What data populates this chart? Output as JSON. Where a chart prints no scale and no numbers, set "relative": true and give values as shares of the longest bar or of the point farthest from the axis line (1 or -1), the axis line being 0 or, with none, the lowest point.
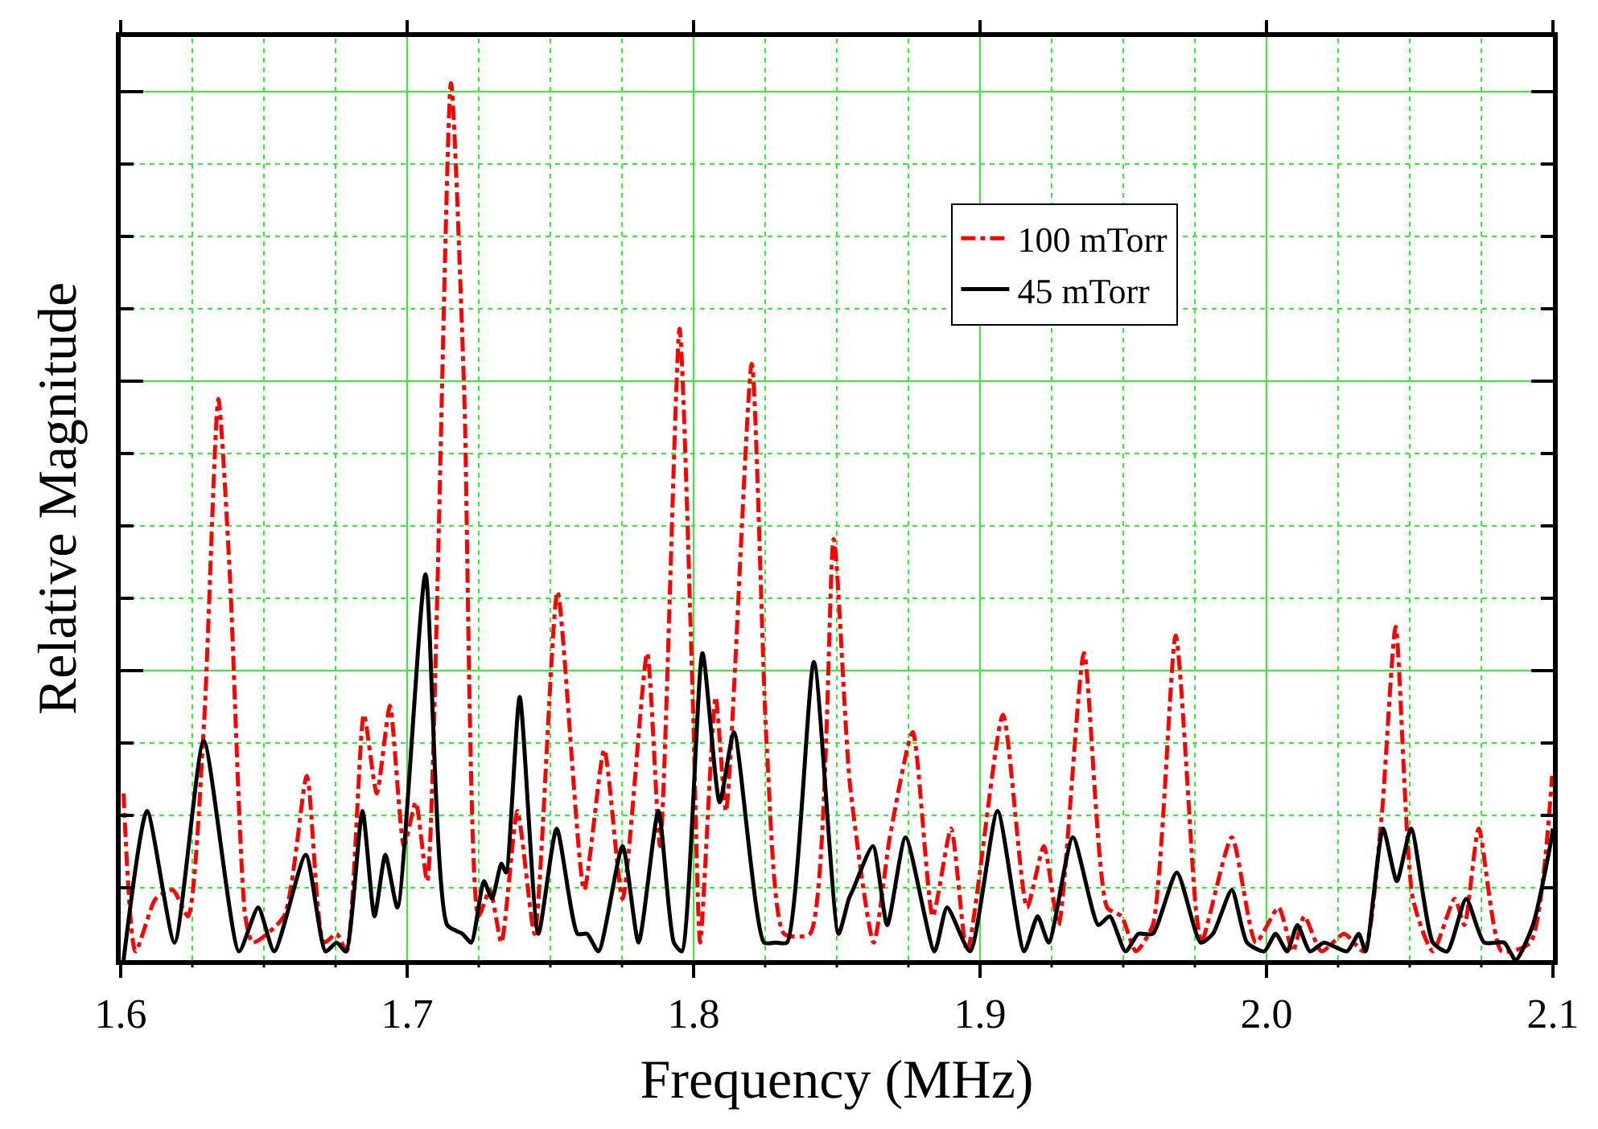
{
  "chart_data": {
    "type": "line",
    "xlabel": "Frequency (MHz)",
    "ylabel": "Relative Magnitude",
    "relative": true,
    "xlim": [
      1.6,
      2.1
    ],
    "xticks": [
      {
        "value": 1.6,
        "label": "1.6"
      },
      {
        "value": 1.625,
        "label": null
      },
      {
        "value": 1.65,
        "label": null
      },
      {
        "value": 1.675,
        "label": null
      },
      {
        "value": 1.7,
        "label": "1.7"
      },
      {
        "value": 1.725,
        "label": null
      },
      {
        "value": 1.75,
        "label": null
      },
      {
        "value": 1.775,
        "label": null
      },
      {
        "value": 1.8,
        "label": "1.8"
      },
      {
        "value": 1.825,
        "label": null
      },
      {
        "value": 1.85,
        "label": null
      },
      {
        "value": 1.875,
        "label": null
      },
      {
        "value": 1.9,
        "label": "1.9"
      },
      {
        "value": 1.925,
        "label": null
      },
      {
        "value": 1.95,
        "label": null
      },
      {
        "value": 1.975,
        "label": null
      },
      {
        "value": 2.0,
        "label": "2.0"
      },
      {
        "value": 2.025,
        "label": null
      },
      {
        "value": 2.05,
        "label": null
      },
      {
        "value": 2.075,
        "label": null
      },
      {
        "value": 2.1,
        "label": "2.1"
      }
    ],
    "grid": true,
    "legend": "top right",
    "marker": "none",
    "series": [
      {
        "name": "100 mTorr",
        "color": "#ff0000",
        "line_style": "dashdot",
        "x": [
          1.601,
          1.6052,
          1.6122,
          1.6182,
          1.6235,
          1.6291,
          1.6341,
          1.6381,
          1.6435,
          1.6461,
          1.657,
          1.665,
          1.6709,
          1.6754,
          1.6789,
          1.6849,
          1.6894,
          1.694,
          1.6989,
          1.703,
          1.707,
          1.7153,
          1.7199,
          1.7249,
          1.7289,
          1.7329,
          1.7385,
          1.7445,
          1.7525,
          1.7618,
          1.7688,
          1.7752,
          1.7838,
          1.7883,
          1.7951,
          1.7997,
          1.8023,
          1.8077,
          1.8113,
          1.8203,
          1.8256,
          1.8316,
          1.8406,
          1.8489,
          1.8546,
          1.8629,
          1.8685,
          1.8765,
          1.8835,
          1.8899,
          1.8955,
          1.908,
          1.9164,
          1.9223,
          1.9274,
          1.9363,
          1.9444,
          1.9494,
          1.9544,
          1.9603,
          1.9683,
          1.9753,
          1.9773,
          1.9879,
          1.9963,
          2.0042,
          2.0092,
          2.0132,
          2.0192,
          2.0271,
          2.034,
          2.0401,
          2.0451,
          2.0511,
          2.0581,
          2.0657,
          2.0691,
          2.0741,
          2.0821,
          2.0921,
          2.0997
        ],
        "values": [
          0.19,
          0.01,
          0.07,
          0.08,
          0.05,
          0.27,
          0.64,
          0.44,
          0.05,
          0.02,
          0.05,
          0.21,
          0.02,
          0.03,
          0.01,
          0.28,
          0.19,
          0.29,
          0.13,
          0.18,
          0.09,
          1,
          0.65,
          0.05,
          0.08,
          0.02,
          0.17,
          0.03,
          0.42,
          0.08,
          0.24,
          0.07,
          0.35,
          0.13,
          0.72,
          0.3,
          0.02,
          0.3,
          0.17,
          0.68,
          0.24,
          0.03,
          0.03,
          0.48,
          0.2,
          0.02,
          0.14,
          0.26,
          0.05,
          0.15,
          0.01,
          0.28,
          0.06,
          0.13,
          0.04,
          0.35,
          0.06,
          0.05,
          0.01,
          0.04,
          0.37,
          0.06,
          0.02,
          0.14,
          0.02,
          0.06,
          0.01,
          0.05,
          0.01,
          0.03,
          0.01,
          0.16,
          0.38,
          0.07,
          0.01,
          0.07,
          0.04,
          0.15,
          0.01,
          0.02,
          0.21
        ]
      },
      {
        "name": "45 mTorr",
        "color": "#000000",
        "line_style": "solid",
        "x": [
          1.601,
          1.6092,
          1.6188,
          1.629,
          1.6413,
          1.648,
          1.6536,
          1.6646,
          1.6715,
          1.6754,
          1.6786,
          1.6844,
          1.6886,
          1.6924,
          1.6966,
          1.7064,
          1.714,
          1.7193,
          1.7224,
          1.7268,
          1.7296,
          1.7329,
          1.7345,
          1.7393,
          1.7458,
          1.7522,
          1.7595,
          1.7628,
          1.7668,
          1.7752,
          1.7808,
          1.7877,
          1.7931,
          1.7959,
          1.8031,
          1.8091,
          1.8141,
          1.8246,
          1.8287,
          1.8326,
          1.842,
          1.8506,
          1.8542,
          1.8556,
          1.8626,
          1.8676,
          1.874,
          1.8841,
          1.8885,
          1.8965,
          1.9061,
          1.9154,
          1.9201,
          1.924,
          1.9324,
          1.9413,
          1.9453,
          1.9508,
          1.9553,
          1.9603,
          1.9687,
          1.977,
          1.9813,
          1.9879,
          1.9932,
          1.9992,
          2.0032,
          2.0072,
          2.0108,
          2.0152,
          2.0201,
          2.0281,
          2.0322,
          2.0346,
          2.0407,
          2.0455,
          2.0505,
          2.0581,
          2.0631,
          2.0697,
          2.076,
          2.083,
          2.087,
          2.093,
          2.099,
          2.1
        ],
        "values": [
          0,
          0.17,
          0.02,
          0.25,
          0.01,
          0.06,
          0.01,
          0.12,
          0.01,
          0.02,
          0.01,
          0.17,
          0.05,
          0.12,
          0.06,
          0.44,
          0.04,
          0.03,
          0.02,
          0.09,
          0.07,
          0.11,
          0.1,
          0.3,
          0.03,
          0.15,
          0.03,
          0.03,
          0.01,
          0.13,
          0.02,
          0.17,
          0.02,
          0.01,
          0.35,
          0.18,
          0.26,
          0.02,
          0.02,
          0.02,
          0.34,
          0.03,
          0.07,
          0.08,
          0.13,
          0.04,
          0.14,
          0.01,
          0.06,
          0.01,
          0.17,
          0.01,
          0.05,
          0.02,
          0.14,
          0.04,
          0.05,
          0.01,
          0.03,
          0.03,
          0.1,
          0.02,
          0.03,
          0.08,
          0.02,
          0.01,
          0.03,
          0.01,
          0.04,
          0.01,
          0.02,
          0.01,
          0.03,
          0.01,
          0.15,
          0.09,
          0.15,
          0.02,
          0.01,
          0.07,
          0.02,
          0.02,
          0,
          0.04,
          0.13,
          0.15
        ]
      }
    ]
  }
}
